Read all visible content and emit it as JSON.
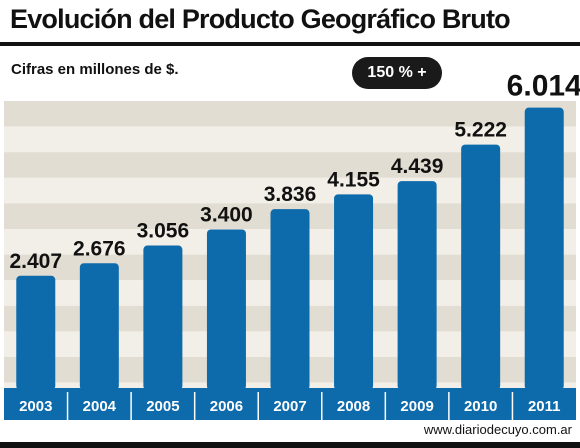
{
  "header": {
    "title": "Evolución del Producto Geográfico Bruto",
    "subtitle": "Cifras en millones de $.",
    "badge": "150 % +"
  },
  "footer": {
    "source": "www.diariodecuyo.com.ar"
  },
  "colors": {
    "bar": "#0d6aab",
    "band_light": "#f2efe8",
    "band_dark": "#e2ddd2",
    "text": "#111111"
  },
  "chart_data": {
    "type": "bar",
    "categories": [
      "2003",
      "2004",
      "2005",
      "2006",
      "2007",
      "2008",
      "2009",
      "2010",
      "2011"
    ],
    "values": [
      2407,
      2676,
      3056,
      3400,
      3836,
      4155,
      4439,
      5222,
      6014
    ],
    "value_labels": [
      "2.407",
      "2.676",
      "3.056",
      "3.400",
      "3.836",
      "4.155",
      "4.439",
      "5.222",
      "6.014"
    ],
    "title": "Evolución del Producto Geográfico Bruto",
    "xlabel": "",
    "ylabel": "",
    "ylim": [
      0,
      6500
    ],
    "grid": "horizontal bands",
    "legend": "none"
  }
}
